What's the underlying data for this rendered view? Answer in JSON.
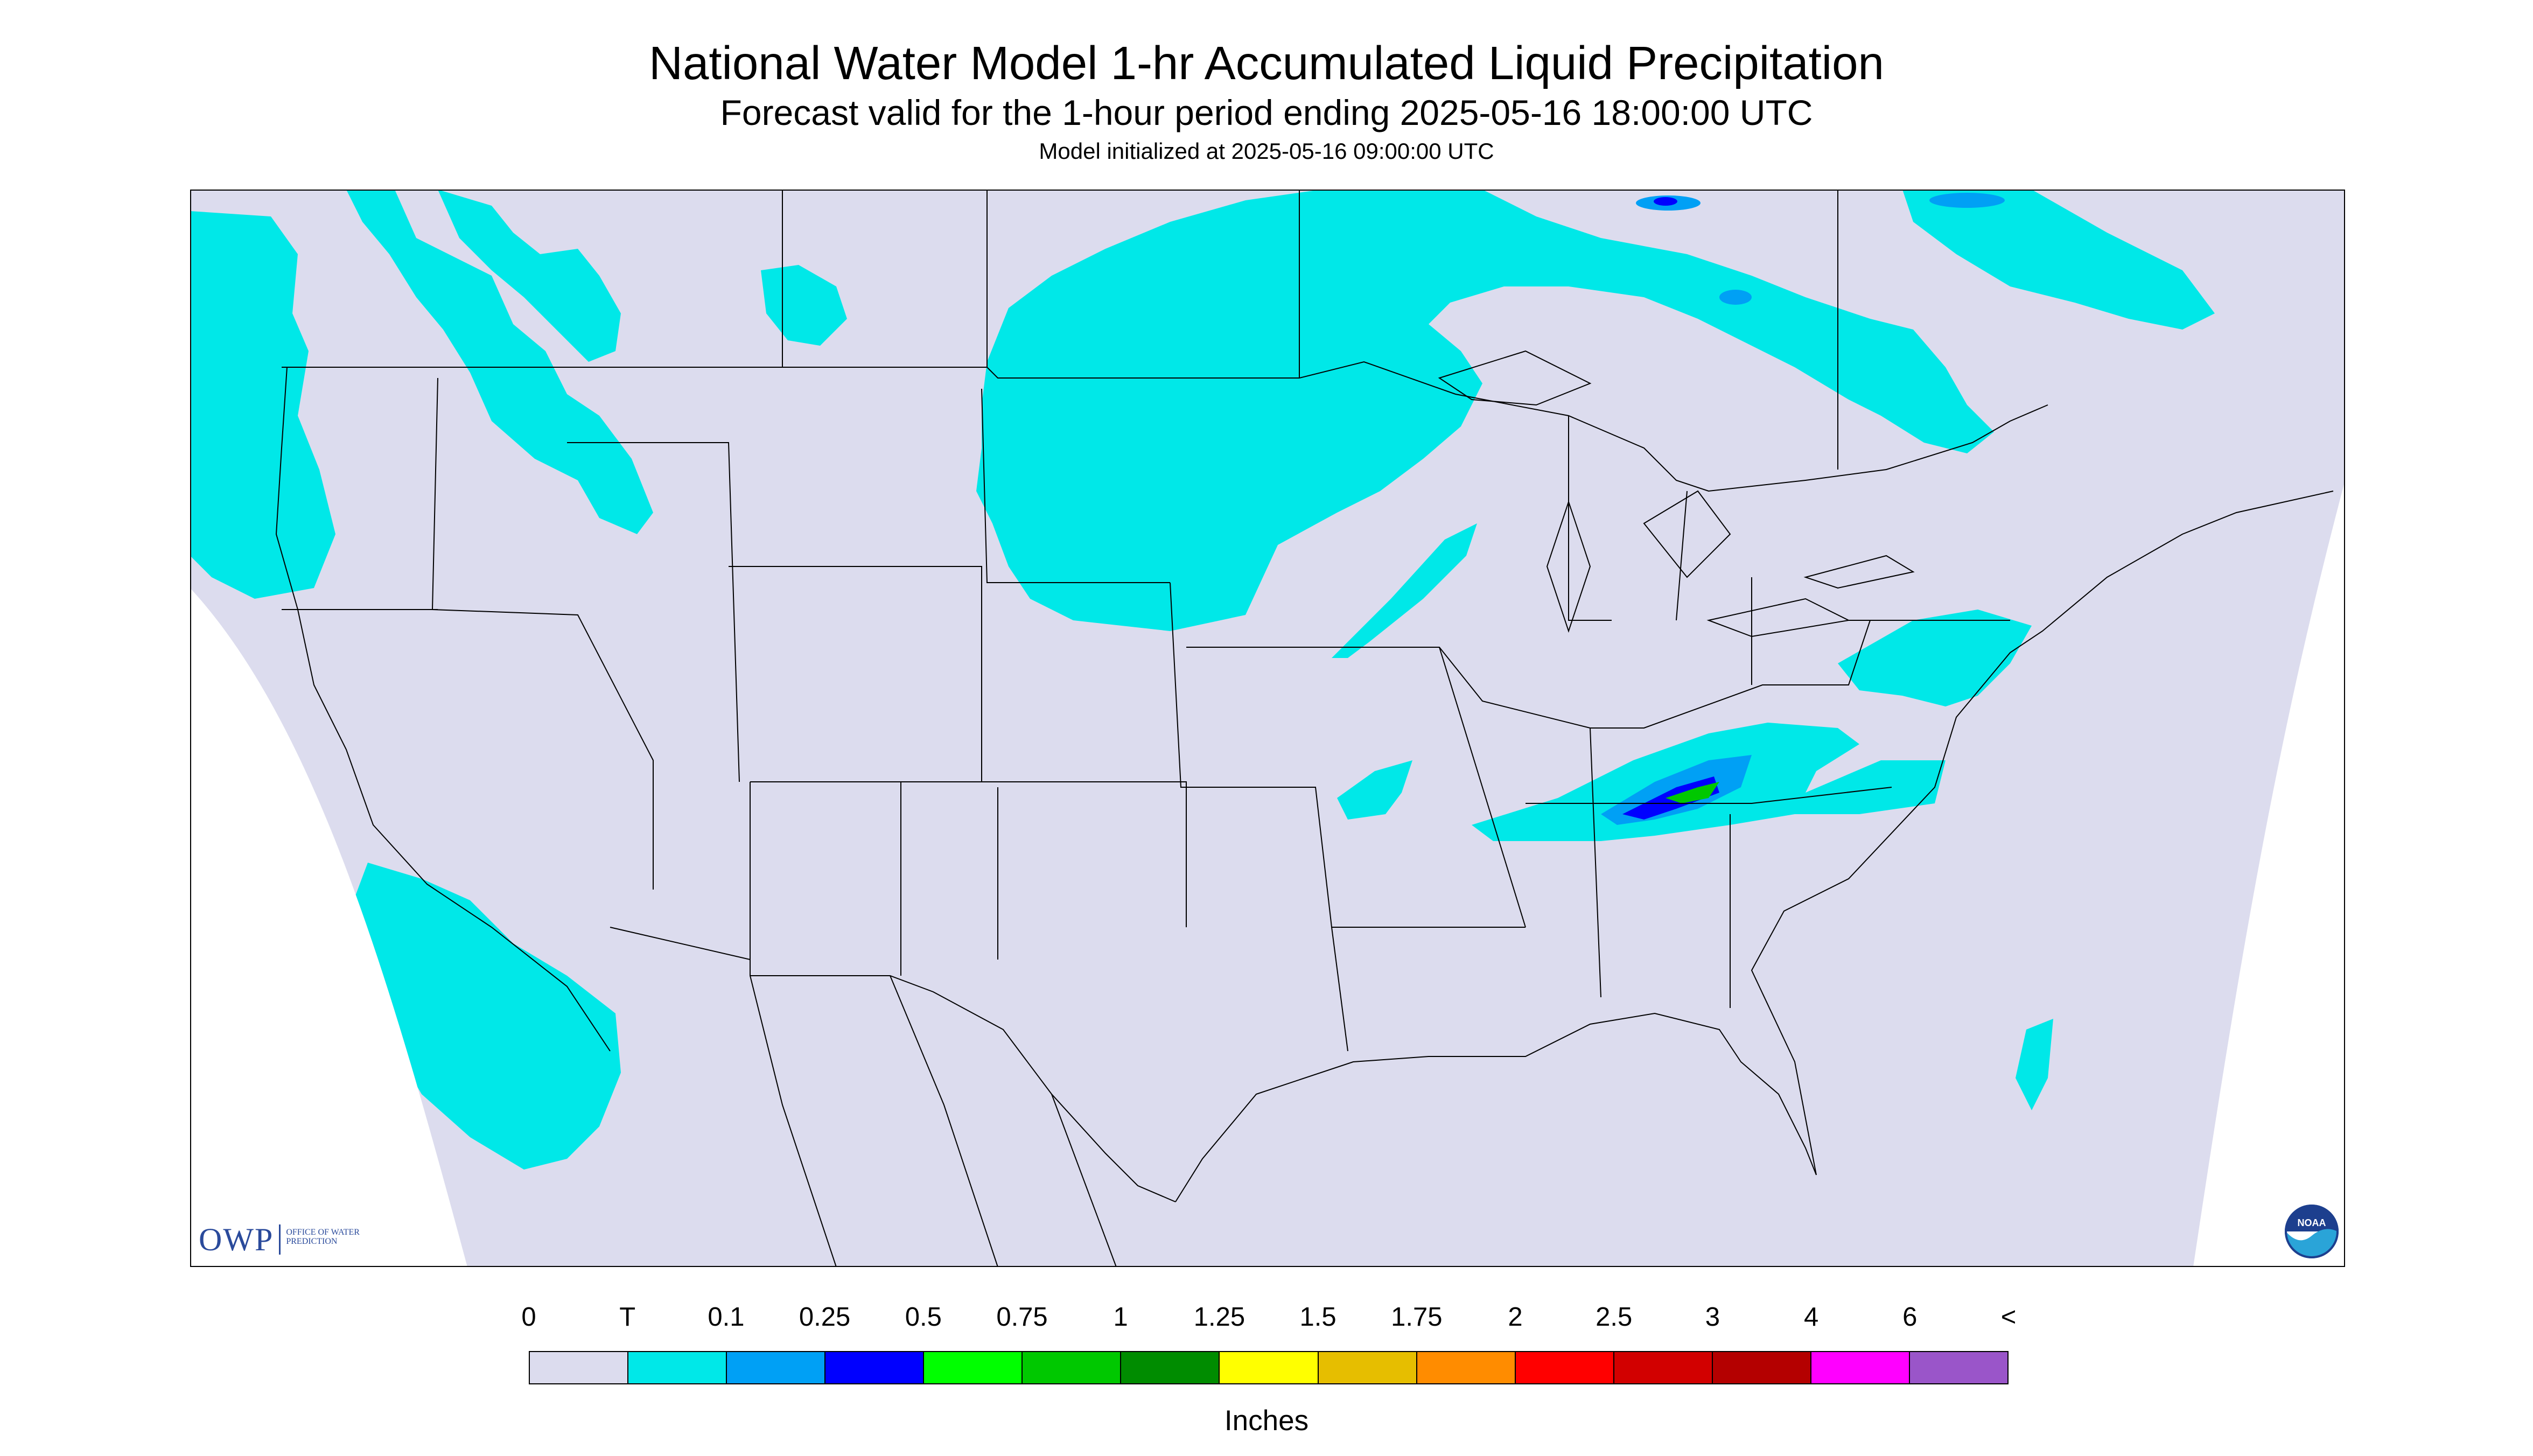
{
  "title": "National Water Model 1-hr Accumulated Liquid Precipitation",
  "subtitle": "Forecast valid for the 1-hour period ending 2025-05-16 18:00:00 UTC",
  "init_time": "Model initialized at 2025-05-16 09:00:00 UTC",
  "logos": {
    "owp_mark": "OWP",
    "owp_subtext": "OFFICE OF WATER PREDICTION",
    "noaa_mark": "NOAA"
  },
  "legend": {
    "units": "Inches",
    "tick_labels": [
      "0",
      "T",
      "0.1",
      "0.25",
      "0.5",
      "0.75",
      "1",
      "1.25",
      "1.5",
      "1.75",
      "2",
      "2.5",
      "3",
      "4",
      "6",
      "<"
    ],
    "bins": [
      {
        "color": "#dcdcee"
      },
      {
        "color": "#00e8e8"
      },
      {
        "color": "#00a0f5"
      },
      {
        "color": "#0000ff"
      },
      {
        "color": "#00ff00"
      },
      {
        "color": "#00c800"
      },
      {
        "color": "#008c00"
      },
      {
        "color": "#ffff00"
      },
      {
        "color": "#e6be00"
      },
      {
        "color": "#ff8c00"
      },
      {
        "color": "#ff0000"
      },
      {
        "color": "#d20000"
      },
      {
        "color": "#b40000"
      },
      {
        "color": "#ff00ff"
      },
      {
        "color": "#9a55c9"
      }
    ]
  },
  "map_colors": {
    "domain_fill": "#dcdcee",
    "outside_fill": "#ffffff",
    "boundary_line": "#000000",
    "trace": "#00e8e8",
    "light": "#00a0f5",
    "moderate": "#0000ff",
    "heavy": "#00c800"
  }
}
